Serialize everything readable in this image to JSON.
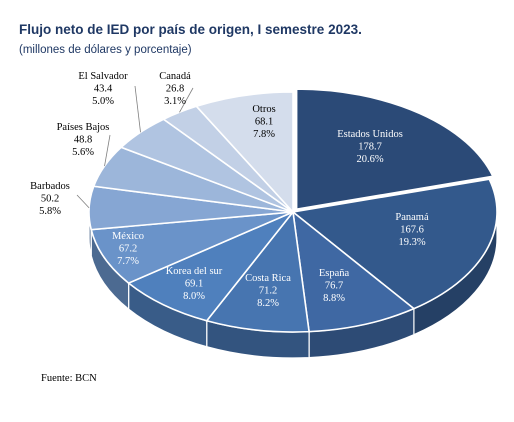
{
  "title": "Flujo neto de IED por país de origen, I semestre 2023.",
  "subtitle": "(millones de dólares y porcentaje)",
  "source": "Fuente: BCN",
  "chart_data": {
    "type": "pie",
    "slices": [
      {
        "label": "Estados Unidos",
        "value": "178.7",
        "percent": "20.6%",
        "color": "#2b4a77",
        "text_color": "#ffffff"
      },
      {
        "label": "Panamá",
        "value": "167.6",
        "percent": "19.3%",
        "color": "#33598c",
        "text_color": "#ffffff"
      },
      {
        "label": "España",
        "value": "76.7",
        "percent": "8.8%",
        "color": "#3f68a3",
        "text_color": "#ffffff"
      },
      {
        "label": "Costa Rica",
        "value": "71.2",
        "percent": "8.2%",
        "color": "#4775b0",
        "text_color": "#ffffff"
      },
      {
        "label": "Korea del sur",
        "value": "69.1",
        "percent": "8.0%",
        "color": "#4f80bd",
        "text_color": "#ffffff"
      },
      {
        "label": "México",
        "value": "67.2",
        "percent": "7.7%",
        "color": "#6a93c9",
        "text_color": "#ffffff"
      },
      {
        "label": "Barbados",
        "value": "50.2",
        "percent": "5.8%",
        "color": "#86a6d3",
        "text_color": "#000000"
      },
      {
        "label": "Países Bajos",
        "value": "48.8",
        "percent": "5.6%",
        "color": "#9cb6da",
        "text_color": "#000000"
      },
      {
        "label": "El Salvador",
        "value": "43.4",
        "percent": "5.0%",
        "color": "#b0c4e1",
        "text_color": "#000000"
      },
      {
        "label": "Canadá",
        "value": "26.8",
        "percent": "3.1%",
        "color": "#c2d0e6",
        "text_color": "#000000"
      },
      {
        "label": "Otros",
        "value": "68.1",
        "percent": "7.8%",
        "color": "#d4ddec",
        "text_color": "#000000"
      }
    ]
  }
}
